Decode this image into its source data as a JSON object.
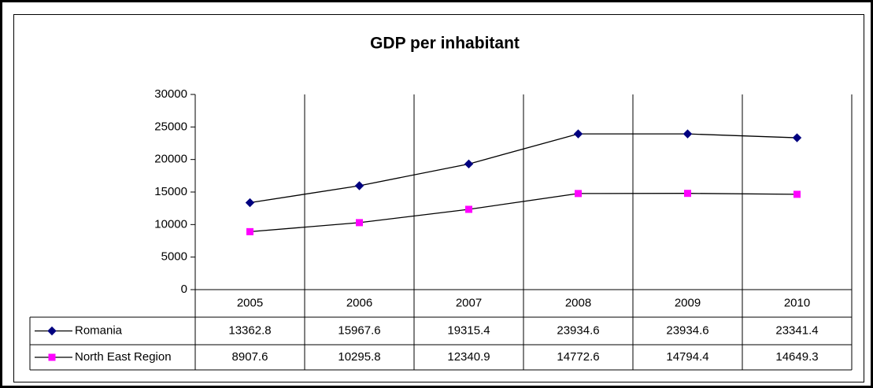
{
  "chart_data": {
    "type": "line",
    "title": "GDP per inhabitant",
    "categories": [
      "2005",
      "2006",
      "2007",
      "2008",
      "2009",
      "2010"
    ],
    "series": [
      {
        "name": "Romania",
        "color": "#000080",
        "marker": "diamond",
        "values": [
          13362.8,
          15967.6,
          19315.4,
          23934.6,
          23934.6,
          23341.4
        ]
      },
      {
        "name": "North East Region",
        "color": "#ff00ff",
        "marker": "square",
        "values": [
          8907.6,
          10295.8,
          12340.9,
          14772.6,
          14794.4,
          14649.3
        ]
      }
    ],
    "line_color": "#000000",
    "ylim": [
      0,
      30000
    ],
    "yticks": [
      0,
      5000,
      10000,
      15000,
      20000,
      25000,
      30000
    ],
    "grid": true
  }
}
